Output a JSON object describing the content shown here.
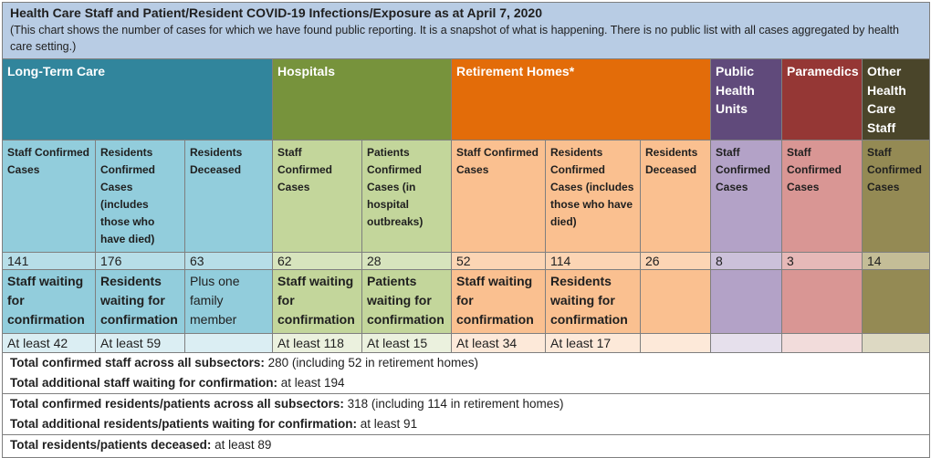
{
  "title": "Health Care Staff and Patient/Resident COVID-19 Infections/Exposure as at April 7, 2020",
  "subtitle": "(This chart shows the number of cases for which we have found public reporting. It is a snapshot of what is happening. There is no public list with all cases aggregated by health care setting.)",
  "groups": {
    "ltc": "Long-Term Care",
    "hospitals": "Hospitals",
    "retirement": "Retirement Homes*",
    "phu": "Public Health Units",
    "paramedics": "Paramedics",
    "other": "Other Health Care Staff"
  },
  "colors": {
    "ltc": "#31859c",
    "hospitals": "#77933c",
    "retirement": "#e36c09",
    "phu": "#604a7b",
    "paramedics": "#953735",
    "other": "#4a452a",
    "title_bg": "#b8cce4"
  },
  "columns": [
    {
      "header": "Staff Confirmed Cases",
      "value": "141",
      "waiting": "Staff waiting for confirmation",
      "at_least": "At least 42"
    },
    {
      "header": "Residents Confirmed Cases (includes those who have died)",
      "value": "176",
      "waiting": "Residents waiting for confirmation",
      "at_least": "At least 59"
    },
    {
      "header": "Residents Deceased",
      "value": "63",
      "waiting": "Plus one family member",
      "at_least": ""
    },
    {
      "header": "Staff Confirmed Cases",
      "value": "62",
      "waiting": "Staff waiting for confirmation",
      "at_least": "At least 118"
    },
    {
      "header": "Patients Confirmed Cases (in hospital outbreaks)",
      "value": "28",
      "waiting": "Patients waiting for confirmation",
      "at_least": "At least 15"
    },
    {
      "header": "Staff Confirmed Cases",
      "value": "52",
      "waiting": "Staff waiting for confirmation",
      "at_least": "At least 34"
    },
    {
      "header": "Residents Confirmed Cases (includes those who have died)",
      "value": "114",
      "waiting": "Residents waiting for confirmation",
      "at_least": "At least 17"
    },
    {
      "header": "Residents Deceased",
      "value": "26",
      "waiting": "",
      "at_least": ""
    },
    {
      "header": "Staff Confirmed Cases",
      "value": "8",
      "waiting": "",
      "at_least": ""
    },
    {
      "header": "Staff Confirmed Cases",
      "value": "3",
      "waiting": "",
      "at_least": ""
    },
    {
      "header": "Staff Confirmed Cases",
      "value": "14",
      "waiting": "",
      "at_least": ""
    }
  ],
  "totals": {
    "staff_confirmed_label": "Total confirmed staff across all subsectors:",
    "staff_confirmed_value": " 280 (including 52 in retirement homes)",
    "staff_waiting_label": "Total additional staff waiting for confirmation:",
    "staff_waiting_value": " at least 194",
    "residents_confirmed_label": "Total confirmed residents/patients across all subsectors:",
    "residents_confirmed_value": " 318 (including 114 in retirement homes)",
    "residents_waiting_label": "Total additional residents/patients waiting for confirmation:",
    "residents_waiting_value": " at least 91",
    "deceased_label": "Total residents/patients deceased:",
    "deceased_value": " at least 89"
  }
}
